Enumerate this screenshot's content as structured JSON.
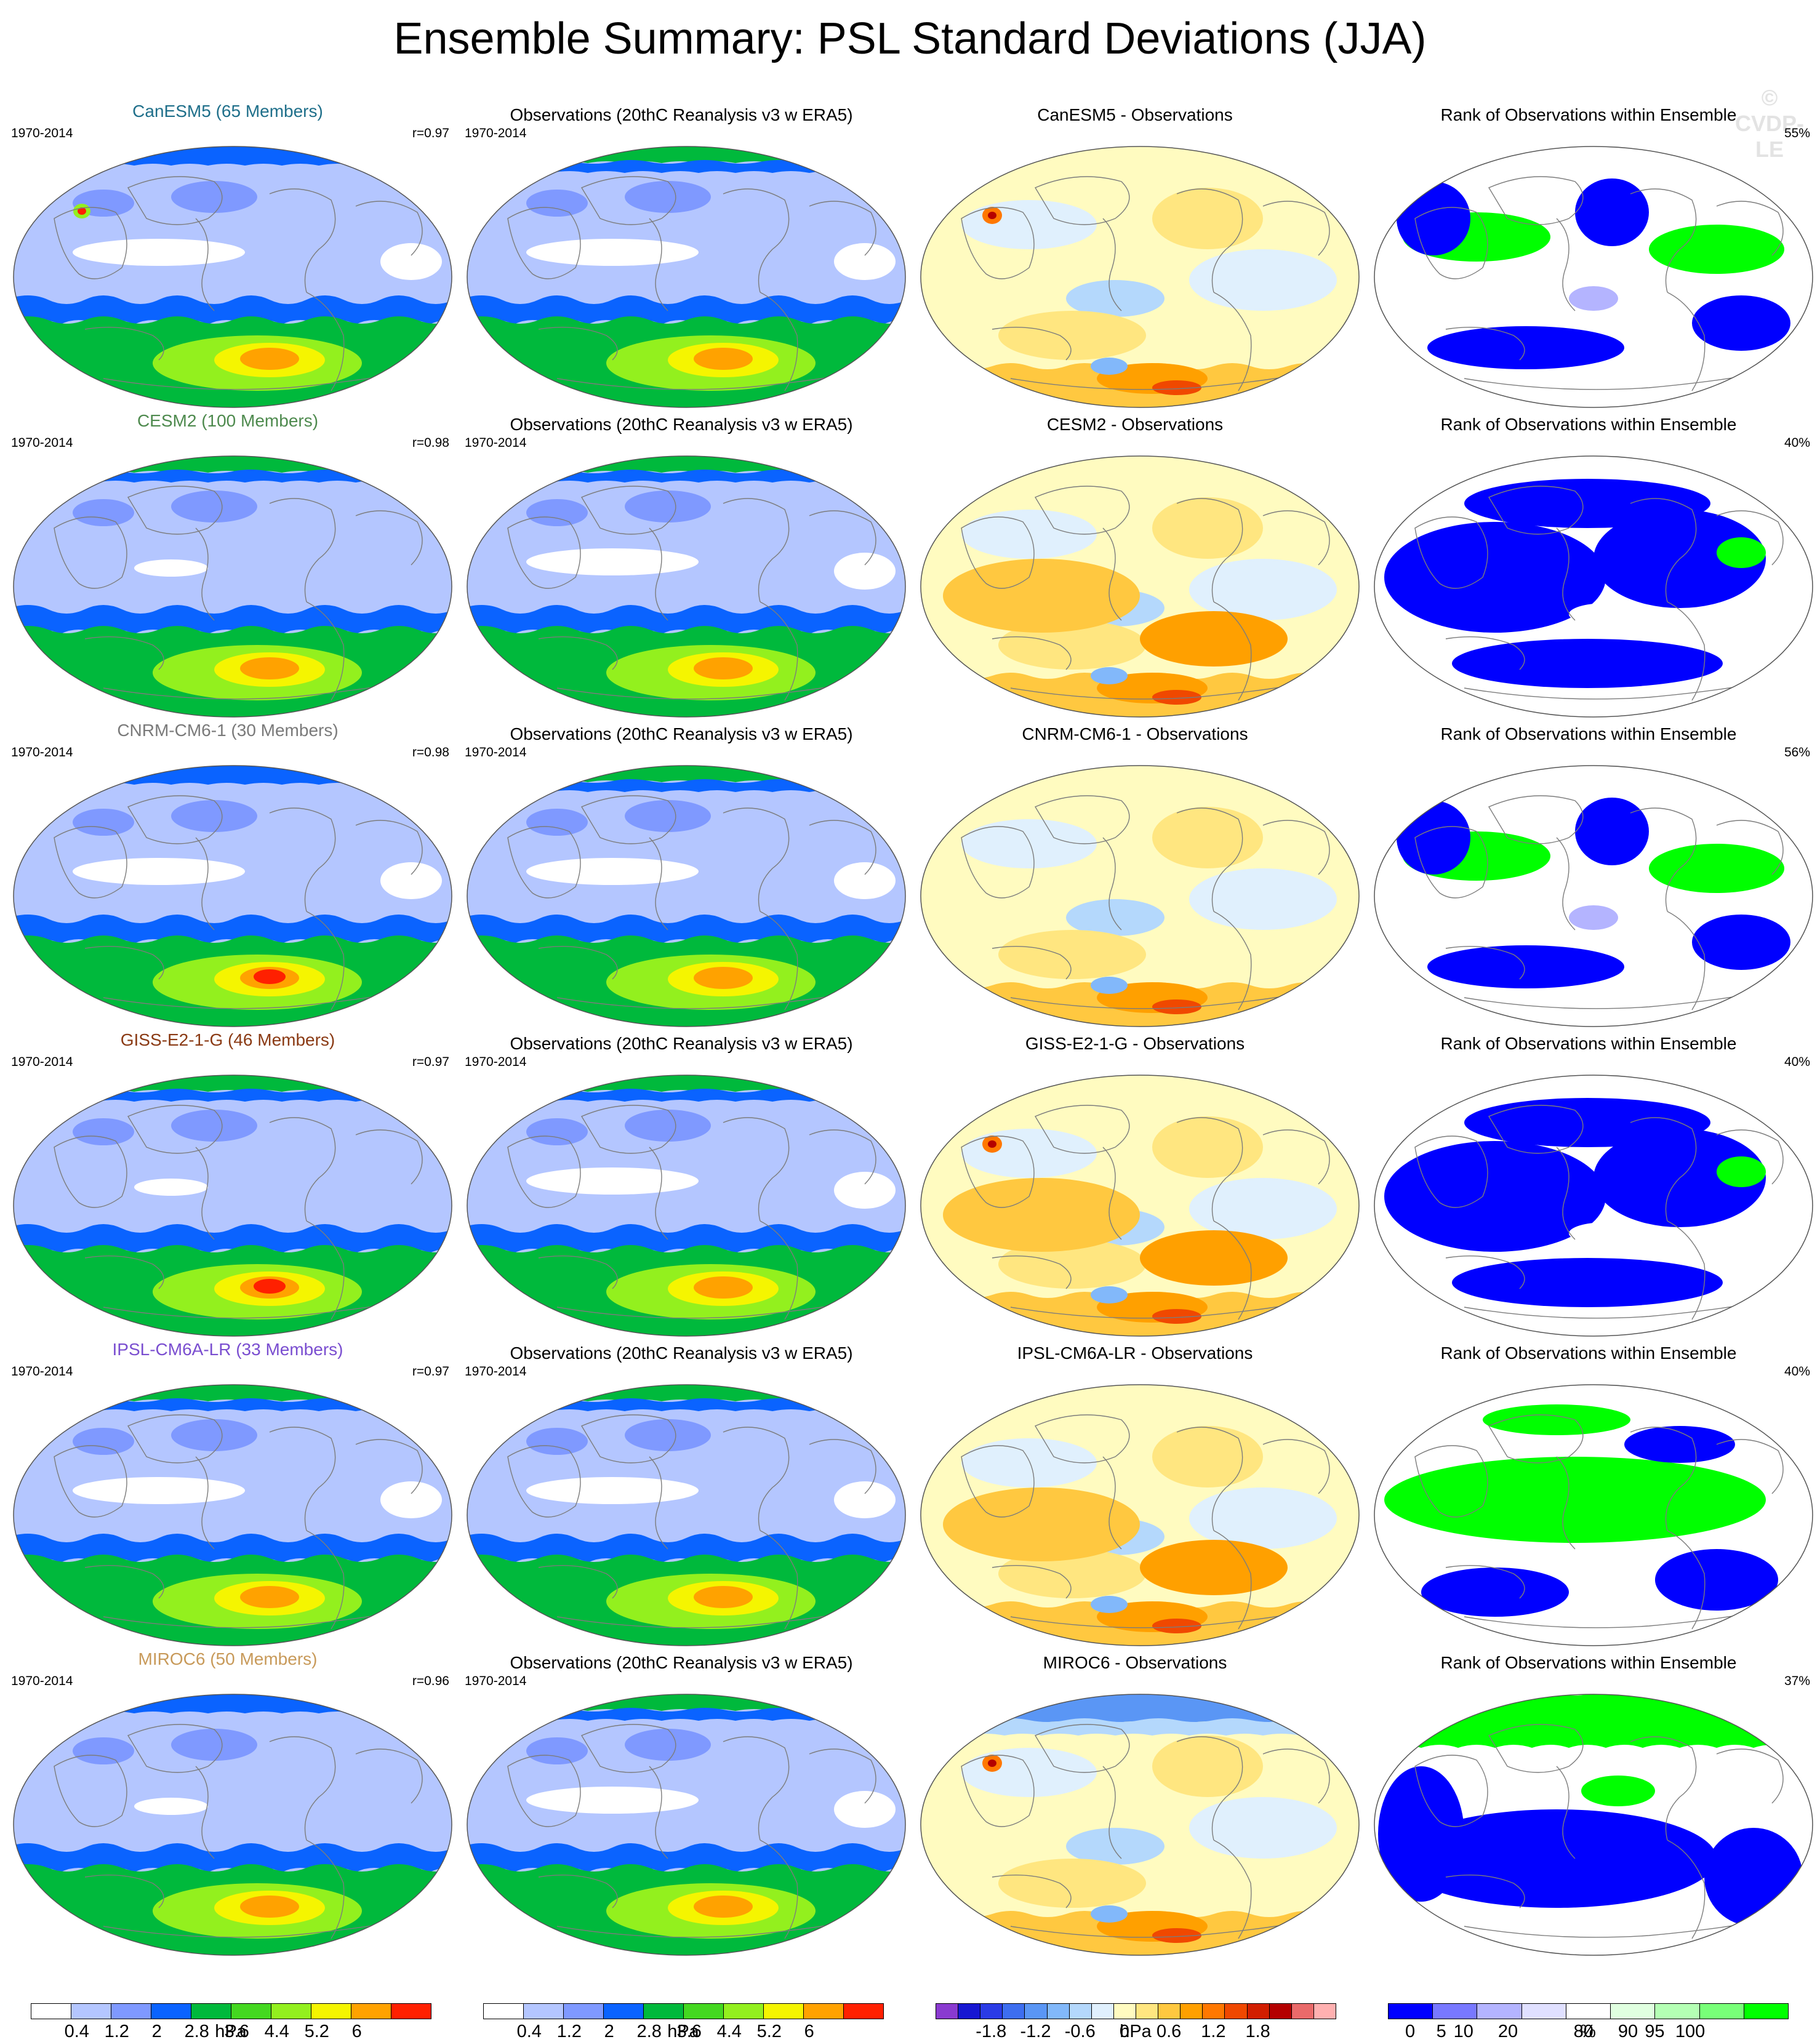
{
  "title": "Ensemble Summary: PSL Standard Deviations (JJA)",
  "watermark": "© CVDP-LE",
  "colors": {
    "sd": [
      "#ffffff",
      "#b4c6ff",
      "#7f99ff",
      "#0a63ff",
      "#00b93c",
      "#44d820",
      "#93f01e",
      "#f5f500",
      "#ffa200",
      "#ff2000"
    ],
    "diff": [
      "#8a3ad0",
      "#1717d2",
      "#2a3be6",
      "#3d6ef0",
      "#5a96f5",
      "#82b8fa",
      "#b4d8fc",
      "#e0f0fd",
      "#fffbc0",
      "#ffe680",
      "#ffc840",
      "#ffa000",
      "#ff7800",
      "#f04800",
      "#d21e00",
      "#b40000",
      "#ea6a6a",
      "#ffb0b0"
    ],
    "rank": [
      "#0000ff",
      "#7878ff",
      "#b4b4ff",
      "#e0e0ff",
      "#ffffff",
      "#e0ffe0",
      "#b4ffb4",
      "#78ff78",
      "#00ff00"
    ]
  },
  "rows": [
    {
      "model": {
        "title": "CanESM5 (65 Members)",
        "title_color": "#1f6f8a",
        "period": "1970-2014",
        "r": "r=0.97",
        "fields": {
          "north": "sd-light",
          "center": "sd-white-belt",
          "south": "sd-green-yellow",
          "spot": "sd-hot-asia"
        }
      },
      "obs": {
        "title": "Observations (20thC Reanalysis v3 w ERA5)",
        "period": "1970-2014"
      },
      "diff": {
        "title": "CanESM5 - Observations",
        "pattern": "pale-yellow",
        "spot": "red-asia"
      },
      "rank": {
        "title": "Rank of Observations within Ensemble",
        "pct": "55%",
        "pattern": "mixed-green"
      }
    },
    {
      "model": {
        "title": "CESM2 (100 Members)",
        "title_color": "#4e8a4e",
        "period": "1970-2014",
        "r": "r=0.98",
        "fields": {
          "north": "sd-green",
          "center": "sd-light",
          "south": "sd-green-yellow",
          "spot": "none"
        }
      },
      "obs": {
        "title": "Observations (20thC Reanalysis v3 w ERA5)",
        "period": "1970-2014"
      },
      "diff": {
        "title": "CESM2 - Observations",
        "pattern": "orange",
        "spot": "none"
      },
      "rank": {
        "title": "Rank of Observations within Ensemble",
        "pct": "40%",
        "pattern": "mostly-blue"
      }
    },
    {
      "model": {
        "title": "CNRM-CM6-1 (30 Members)",
        "title_color": "#7a7a7a",
        "period": "1970-2014",
        "r": "r=0.98",
        "fields": {
          "north": "sd-light",
          "center": "sd-white-belt",
          "south": "sd-green-red",
          "spot": "none"
        }
      },
      "obs": {
        "title": "Observations (20thC Reanalysis v3 w ERA5)",
        "period": "1970-2014"
      },
      "diff": {
        "title": "CNRM-CM6-1 - Observations",
        "pattern": "pale-yellow",
        "spot": "none"
      },
      "rank": {
        "title": "Rank of Observations within Ensemble",
        "pct": "56%",
        "pattern": "mixed-green"
      }
    },
    {
      "model": {
        "title": "GISS-E2-1-G (46 Members)",
        "title_color": "#8a3a14",
        "period": "1970-2014",
        "r": "r=0.97",
        "fields": {
          "north": "sd-green",
          "center": "sd-light",
          "south": "sd-green-red",
          "spot": "none"
        }
      },
      "obs": {
        "title": "Observations (20thC Reanalysis v3 w ERA5)",
        "period": "1970-2014"
      },
      "diff": {
        "title": "GISS-E2-1-G - Observations",
        "pattern": "orange",
        "spot": "red-asia"
      },
      "rank": {
        "title": "Rank of Observations within Ensemble",
        "pct": "40%",
        "pattern": "mostly-blue"
      }
    },
    {
      "model": {
        "title": "IPSL-CM6A-LR (33 Members)",
        "title_color": "#7a4ed0",
        "period": "1970-2014",
        "r": "r=0.97",
        "fields": {
          "north": "sd-green",
          "center": "sd-white-belt",
          "south": "sd-green-yellow",
          "spot": "none"
        }
      },
      "obs": {
        "title": "Observations (20thC Reanalysis v3 w ERA5)",
        "period": "1970-2014"
      },
      "diff": {
        "title": "IPSL-CM6A-LR - Observations",
        "pattern": "orange",
        "spot": "none"
      },
      "rank": {
        "title": "Rank of Observations within Ensemble",
        "pct": "40%",
        "pattern": "mostly-green"
      }
    },
    {
      "model": {
        "title": "MIROC6 (50 Members)",
        "title_color": "#c89a5a",
        "period": "1970-2014",
        "r": "r=0.96",
        "fields": {
          "north": "sd-light",
          "center": "sd-light",
          "south": "sd-green-yellow",
          "spot": "none"
        }
      },
      "obs": {
        "title": "Observations (20thC Reanalysis v3 w ERA5)",
        "period": "1970-2014"
      },
      "diff": {
        "title": "MIROC6 - Observations",
        "pattern": "blue-north",
        "spot": "red-asia"
      },
      "rank": {
        "title": "Rank of Observations within Ensemble",
        "pct": "37%",
        "pattern": "green-north"
      }
    }
  ],
  "colorbars": [
    {
      "palette": "sd",
      "labels": [
        "0.4",
        "1.2",
        "2",
        "2.8",
        "3.6",
        "4.4",
        "5.2",
        "6"
      ],
      "unit": "hPa"
    },
    {
      "palette": "sd",
      "labels": [
        "0.4",
        "1.2",
        "2",
        "2.8",
        "3.6",
        "4.4",
        "5.2",
        "6"
      ],
      "unit": "hPa"
    },
    {
      "palette": "diff",
      "labels": [
        "-1.8",
        "-1.2",
        "-0.6",
        "0",
        "0.6",
        "1.2",
        "1.8"
      ],
      "unit": "hPa"
    },
    {
      "palette": "rank",
      "labels": [
        "0",
        "5",
        "10",
        "20",
        "80",
        "90",
        "95",
        "100"
      ],
      "unit": "%"
    }
  ]
}
